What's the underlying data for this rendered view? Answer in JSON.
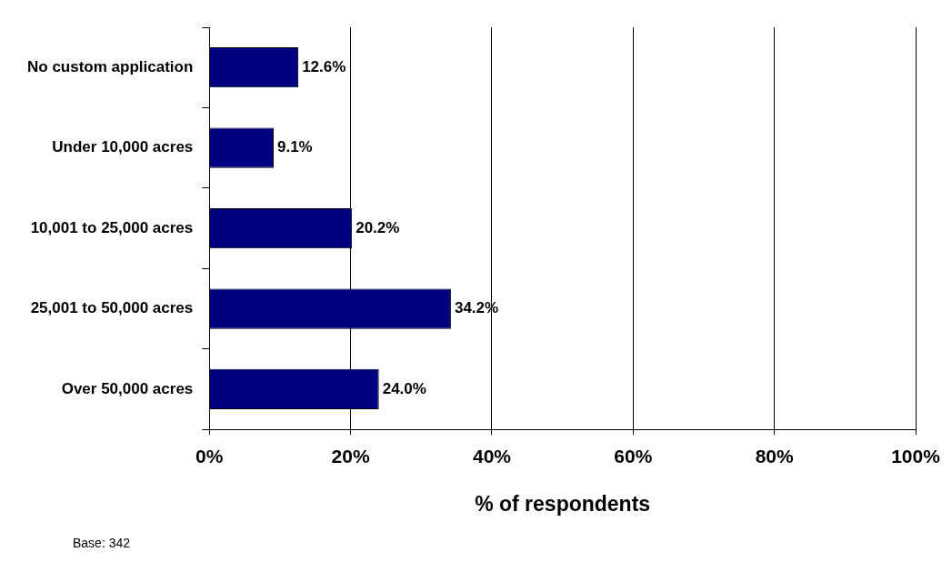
{
  "chart_data": {
    "type": "bar",
    "orientation": "horizontal",
    "categories": [
      "No custom application",
      "Under 10,000 acres",
      "10,001 to 25,000 acres",
      "25,001 to 50,000 acres",
      "Over 50,000 acres"
    ],
    "series": [
      {
        "color": "#000080",
        "values": [
          12.6,
          9.1,
          20.2,
          34.2,
          24.0
        ],
        "value_labels": [
          "12.6%",
          "9.1%",
          "20.2%",
          "34.2%",
          "24.0%"
        ]
      }
    ],
    "xlim": [
      0,
      100
    ],
    "xticks": [
      {
        "value": 0,
        "label": "0%"
      },
      {
        "value": 20,
        "label": "20%"
      },
      {
        "value": 40,
        "label": "40%"
      },
      {
        "value": 60,
        "label": "60%"
      },
      {
        "value": 80,
        "label": "80%"
      },
      {
        "value": 100,
        "label": "100%"
      }
    ],
    "xlabel": "% of respondents",
    "grid": "x",
    "legend": false,
    "annotations": [
      "Base: 342"
    ]
  }
}
